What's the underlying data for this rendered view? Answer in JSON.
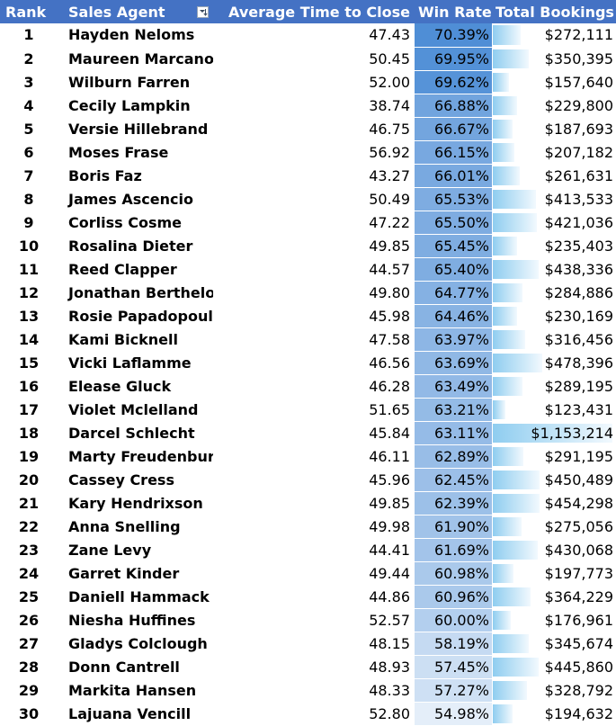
{
  "headers": {
    "rank": "Rank",
    "agent": "Sales Agent",
    "avg": "Average Time to Close",
    "win": "Win Rate",
    "book": "Total Bookings",
    "filter_icon": "sort-descending-filter-icon"
  },
  "colors": {
    "header_bg": "#4472c4",
    "header_text": "#ffffff",
    "win_rate_scale_high": "#4f8ed6",
    "win_rate_scale_low": "#e4eef9",
    "data_bar": "#8fcdf0"
  },
  "rows": [
    {
      "rank": "1",
      "agent": "Hayden Neloms",
      "avg": "47.43",
      "win": "70.39%",
      "bookings": "$272,111",
      "win_value": 70.39,
      "bookings_value": 272111
    },
    {
      "rank": "2",
      "agent": "Maureen Marcano",
      "avg": "50.45",
      "win": "69.95%",
      "bookings": "$350,395",
      "win_value": 69.95,
      "bookings_value": 350395
    },
    {
      "rank": "3",
      "agent": "Wilburn Farren",
      "avg": "52.00",
      "win": "69.62%",
      "bookings": "$157,640",
      "win_value": 69.62,
      "bookings_value": 157640
    },
    {
      "rank": "4",
      "agent": "Cecily Lampkin",
      "avg": "38.74",
      "win": "66.88%",
      "bookings": "$229,800",
      "win_value": 66.88,
      "bookings_value": 229800
    },
    {
      "rank": "5",
      "agent": "Versie Hillebrand",
      "avg": "46.75",
      "win": "66.67%",
      "bookings": "$187,693",
      "win_value": 66.67,
      "bookings_value": 187693
    },
    {
      "rank": "6",
      "agent": "Moses Frase",
      "avg": "56.92",
      "win": "66.15%",
      "bookings": "$207,182",
      "win_value": 66.15,
      "bookings_value": 207182
    },
    {
      "rank": "7",
      "agent": "Boris Faz",
      "avg": "43.27",
      "win": "66.01%",
      "bookings": "$261,631",
      "win_value": 66.01,
      "bookings_value": 261631
    },
    {
      "rank": "8",
      "agent": "James Ascencio",
      "avg": "50.49",
      "win": "65.53%",
      "bookings": "$413,533",
      "win_value": 65.53,
      "bookings_value": 413533
    },
    {
      "rank": "9",
      "agent": "Corliss Cosme",
      "avg": "47.22",
      "win": "65.50%",
      "bookings": "$421,036",
      "win_value": 65.5,
      "bookings_value": 421036
    },
    {
      "rank": "10",
      "agent": "Rosalina Dieter",
      "avg": "49.85",
      "win": "65.45%",
      "bookings": "$235,403",
      "win_value": 65.45,
      "bookings_value": 235403
    },
    {
      "rank": "11",
      "agent": "Reed Clapper",
      "avg": "44.57",
      "win": "65.40%",
      "bookings": "$438,336",
      "win_value": 65.4,
      "bookings_value": 438336
    },
    {
      "rank": "12",
      "agent": "Jonathan Berthelot",
      "avg": "49.80",
      "win": "64.77%",
      "bookings": "$284,886",
      "win_value": 64.77,
      "bookings_value": 284886
    },
    {
      "rank": "13",
      "agent": "Rosie Papadopoulos",
      "avg": "45.98",
      "win": "64.46%",
      "bookings": "$230,169",
      "win_value": 64.46,
      "bookings_value": 230169
    },
    {
      "rank": "14",
      "agent": "Kami Bicknell",
      "avg": "47.58",
      "win": "63.97%",
      "bookings": "$316,456",
      "win_value": 63.97,
      "bookings_value": 316456
    },
    {
      "rank": "15",
      "agent": "Vicki Laflamme",
      "avg": "46.56",
      "win": "63.69%",
      "bookings": "$478,396",
      "win_value": 63.69,
      "bookings_value": 478396
    },
    {
      "rank": "16",
      "agent": "Elease Gluck",
      "avg": "46.28",
      "win": "63.49%",
      "bookings": "$289,195",
      "win_value": 63.49,
      "bookings_value": 289195
    },
    {
      "rank": "17",
      "agent": "Violet Mclelland",
      "avg": "51.65",
      "win": "63.21%",
      "bookings": "$123,431",
      "win_value": 63.21,
      "bookings_value": 123431
    },
    {
      "rank": "18",
      "agent": "Darcel Schlecht",
      "avg": "45.84",
      "win": "63.11%",
      "bookings": "$1,153,214",
      "win_value": 63.11,
      "bookings_value": 1153214
    },
    {
      "rank": "19",
      "agent": "Marty Freudenburg",
      "avg": "46.11",
      "win": "62.89%",
      "bookings": "$291,195",
      "win_value": 62.89,
      "bookings_value": 291195
    },
    {
      "rank": "20",
      "agent": "Cassey Cress",
      "avg": "45.96",
      "win": "62.45%",
      "bookings": "$450,489",
      "win_value": 62.45,
      "bookings_value": 450489
    },
    {
      "rank": "21",
      "agent": "Kary Hendrixson",
      "avg": "49.85",
      "win": "62.39%",
      "bookings": "$454,298",
      "win_value": 62.39,
      "bookings_value": 454298
    },
    {
      "rank": "22",
      "agent": "Anna Snelling",
      "avg": "49.98",
      "win": "61.90%",
      "bookings": "$275,056",
      "win_value": 61.9,
      "bookings_value": 275056
    },
    {
      "rank": "23",
      "agent": "Zane Levy",
      "avg": "44.41",
      "win": "61.69%",
      "bookings": "$430,068",
      "win_value": 61.69,
      "bookings_value": 430068
    },
    {
      "rank": "24",
      "agent": "Garret Kinder",
      "avg": "49.44",
      "win": "60.98%",
      "bookings": "$197,773",
      "win_value": 60.98,
      "bookings_value": 197773
    },
    {
      "rank": "25",
      "agent": "Daniell Hammack",
      "avg": "44.86",
      "win": "60.96%",
      "bookings": "$364,229",
      "win_value": 60.96,
      "bookings_value": 364229
    },
    {
      "rank": "26",
      "agent": "Niesha Huffines",
      "avg": "52.57",
      "win": "60.00%",
      "bookings": "$176,961",
      "win_value": 60.0,
      "bookings_value": 176961
    },
    {
      "rank": "27",
      "agent": "Gladys Colclough",
      "avg": "48.15",
      "win": "58.19%",
      "bookings": "$345,674",
      "win_value": 58.19,
      "bookings_value": 345674
    },
    {
      "rank": "28",
      "agent": "Donn Cantrell",
      "avg": "48.93",
      "win": "57.45%",
      "bookings": "$445,860",
      "win_value": 57.45,
      "bookings_value": 445860
    },
    {
      "rank": "29",
      "agent": "Markita Hansen",
      "avg": "48.33",
      "win": "57.27%",
      "bookings": "$328,792",
      "win_value": 57.27,
      "bookings_value": 328792
    },
    {
      "rank": "30",
      "agent": "Lajuana Vencill",
      "avg": "52.80",
      "win": "54.98%",
      "bookings": "$194,632",
      "win_value": 54.98,
      "bookings_value": 194632
    }
  ]
}
